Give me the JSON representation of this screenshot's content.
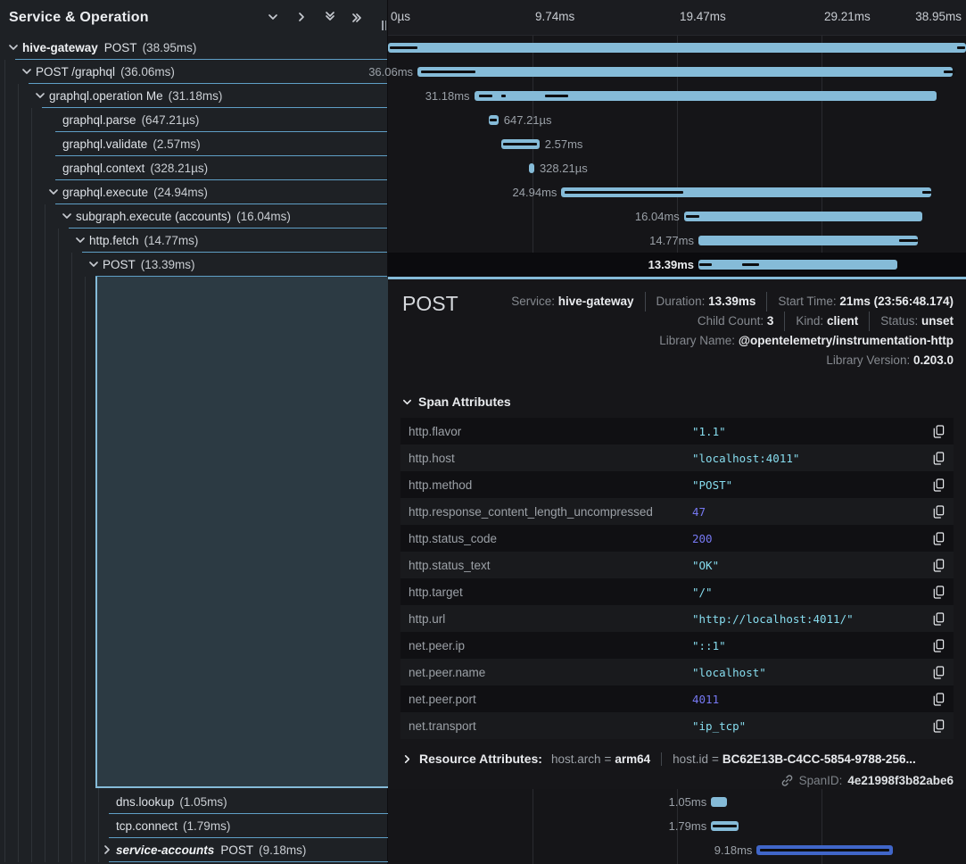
{
  "header": {
    "title": "Service & Operation",
    "icons": [
      "chevron-down-icon",
      "chevron-right-icon",
      "double-chevron-down-icon",
      "double-chevron-right-icon"
    ]
  },
  "ruler": {
    "ticks": [
      "0µs",
      "9.74ms",
      "19.47ms",
      "29.21ms",
      "38.95ms"
    ]
  },
  "colors": {
    "bar_blue": "#85bbd8",
    "bar_service2": "#4066c9",
    "row_border": "#5f9fc6",
    "selected_panel": "#2c3a43",
    "string_value": "#87ddef",
    "number_value": "#7779f3"
  },
  "spans": [
    {
      "service": "hive-gateway",
      "italic": false,
      "name": "POST",
      "duration": "(38.95ms)",
      "level": 0,
      "toggle": "expanded",
      "selected": false,
      "bar": {
        "start": 0.0,
        "width": 1.0,
        "color": "light",
        "label": "",
        "label_side": "none",
        "bold_label": false,
        "dashes": [
          [
            0.003,
            0.048
          ],
          [
            0.985,
            0.013
          ]
        ]
      }
    },
    {
      "service": "",
      "italic": false,
      "name": "POST /graphql",
      "duration": "(36.06ms)",
      "level": 1,
      "toggle": "expanded",
      "selected": false,
      "bar": {
        "start": 0.051,
        "width": 0.926,
        "color": "light",
        "label": "36.06ms",
        "label_side": "left",
        "bold_label": false,
        "dashes": [
          [
            0.057,
            0.095
          ],
          [
            0.962,
            0.019
          ]
        ]
      }
    },
    {
      "service": "",
      "italic": false,
      "name": "graphql.operation Me",
      "duration": "(31.18ms)",
      "level": 2,
      "toggle": "expanded",
      "selected": false,
      "bar": {
        "start": 0.149,
        "width": 0.8,
        "color": "light",
        "label": "31.18ms",
        "label_side": "left",
        "bold_label": false,
        "dashes": [
          [
            0.157,
            0.024
          ],
          [
            0.196,
            0.008
          ],
          [
            0.272,
            0.04
          ]
        ]
      }
    },
    {
      "service": "",
      "italic": false,
      "name": "graphql.parse",
      "duration": "(647.21µs)",
      "level": 3,
      "toggle": "none",
      "selected": false,
      "bar": {
        "start": 0.174,
        "width": 0.017,
        "color": "light",
        "label": "647.21µs",
        "label_side": "right",
        "bold_label": false,
        "dashes": [
          [
            0.176,
            0.012
          ]
        ]
      }
    },
    {
      "service": "",
      "italic": false,
      "name": "graphql.validate",
      "duration": "(2.57ms)",
      "level": 3,
      "toggle": "none",
      "selected": false,
      "bar": {
        "start": 0.196,
        "width": 0.066,
        "color": "light",
        "label": "2.57ms",
        "label_side": "right",
        "bold_label": false,
        "dashes": [
          [
            0.199,
            0.059
          ]
        ]
      }
    },
    {
      "service": "",
      "italic": false,
      "name": "graphql.context",
      "duration": "(328.21µs)",
      "level": 3,
      "toggle": "none",
      "selected": false,
      "bar": {
        "start": 0.244,
        "width": 0.009,
        "color": "light",
        "label": "328.21µs",
        "label_side": "right",
        "bold_label": false,
        "dashes": []
      }
    },
    {
      "service": "",
      "italic": false,
      "name": "graphql.execute",
      "duration": "(24.94ms)",
      "level": 3,
      "toggle": "expanded",
      "selected": false,
      "bar": {
        "start": 0.3,
        "width": 0.64,
        "color": "light",
        "label": "24.94ms",
        "label_side": "left",
        "bold_label": false,
        "dashes": [
          [
            0.306,
            0.205
          ],
          [
            0.925,
            0.015
          ]
        ]
      }
    },
    {
      "service": "",
      "italic": false,
      "name": "subgraph.execute (accounts)",
      "duration": "(16.04ms)",
      "level": 4,
      "toggle": "expanded",
      "selected": false,
      "bar": {
        "start": 0.512,
        "width": 0.412,
        "color": "light",
        "label": "16.04ms",
        "label_side": "left",
        "bold_label": false,
        "dashes": [
          [
            0.515,
            0.024
          ]
        ]
      }
    },
    {
      "service": "",
      "italic": false,
      "name": "http.fetch",
      "duration": "(14.77ms)",
      "level": 5,
      "toggle": "expanded",
      "selected": false,
      "bar": {
        "start": 0.537,
        "width": 0.379,
        "color": "light",
        "label": "14.77ms",
        "label_side": "left",
        "bold_label": false,
        "dashes": [
          [
            0.885,
            0.031
          ]
        ]
      }
    },
    {
      "service": "",
      "italic": false,
      "name": "POST",
      "duration": "(13.39ms)",
      "level": 6,
      "toggle": "expanded",
      "selected": true,
      "bar": {
        "start": 0.537,
        "width": 0.344,
        "color": "light",
        "label": "13.39ms",
        "label_side": "left",
        "bold_label": true,
        "dashes": [
          [
            0.539,
            0.021
          ],
          [
            0.612,
            0.03
          ]
        ]
      }
    }
  ],
  "bottom_spans": [
    {
      "service": "",
      "italic": false,
      "name": "dns.lookup",
      "duration": "(1.05ms)",
      "level": 7,
      "toggle": "none",
      "selected": false,
      "bar": {
        "start": 0.559,
        "width": 0.028,
        "color": "light",
        "label": "1.05ms",
        "label_side": "left",
        "bold_label": false,
        "dashes": []
      }
    },
    {
      "service": "",
      "italic": false,
      "name": "tcp.connect",
      "duration": "(1.79ms)",
      "level": 7,
      "toggle": "none",
      "selected": false,
      "bar": {
        "start": 0.559,
        "width": 0.047,
        "color": "light",
        "label": "1.79ms",
        "label_side": "left",
        "bold_label": false,
        "dashes": [
          [
            0.561,
            0.043
          ]
        ]
      }
    },
    {
      "service": "service-accounts",
      "italic": true,
      "name": "POST",
      "duration": "(9.18ms)",
      "level": 7,
      "toggle": "collapsed",
      "selected": false,
      "bar": {
        "start": 0.638,
        "width": 0.236,
        "color": "blue",
        "label": "9.18ms",
        "label_side": "left",
        "bold_label": false,
        "dashes": [
          [
            0.643,
            0.224
          ]
        ]
      }
    }
  ],
  "detail": {
    "title": "POST",
    "meta_rows": [
      [
        {
          "label": "Service:",
          "value": "hive-gateway"
        },
        {
          "label": "Duration:",
          "value": "13.39ms"
        },
        {
          "label": "Start Time:",
          "value": "21ms (23:56:48.174)"
        }
      ],
      [
        {
          "label": "Child Count:",
          "value": "3"
        },
        {
          "label": "Kind:",
          "value": "client"
        },
        {
          "label": "Status:",
          "value": "unset"
        }
      ],
      [
        {
          "label": "Library Name:",
          "value": "@opentelemetry/instrumentation-http"
        }
      ],
      [
        {
          "label": "Library Version:",
          "value": "0.203.0"
        }
      ]
    ],
    "attributes_title": "Span Attributes",
    "attributes": [
      {
        "key": "http.flavor",
        "value": "\"1.1\"",
        "type": "string"
      },
      {
        "key": "http.host",
        "value": "\"localhost:4011\"",
        "type": "string"
      },
      {
        "key": "http.method",
        "value": "\"POST\"",
        "type": "string"
      },
      {
        "key": "http.response_content_length_uncompressed",
        "value": "47",
        "type": "number"
      },
      {
        "key": "http.status_code",
        "value": "200",
        "type": "number"
      },
      {
        "key": "http.status_text",
        "value": "\"OK\"",
        "type": "string"
      },
      {
        "key": "http.target",
        "value": "\"/\"",
        "type": "string"
      },
      {
        "key": "http.url",
        "value": "\"http://localhost:4011/\"",
        "type": "string"
      },
      {
        "key": "net.peer.ip",
        "value": "\"::1\"",
        "type": "string"
      },
      {
        "key": "net.peer.name",
        "value": "\"localhost\"",
        "type": "string"
      },
      {
        "key": "net.peer.port",
        "value": "4011",
        "type": "number"
      },
      {
        "key": "net.transport",
        "value": "\"ip_tcp\"",
        "type": "string"
      }
    ],
    "resource": {
      "title": "Resource Attributes:",
      "pairs": [
        {
          "key": "host.arch",
          "value": "arm64"
        },
        {
          "key": "host.id",
          "value": "BC62E13B-C4CC-5854-9788-256..."
        }
      ]
    },
    "span_id": {
      "label": "SpanID:",
      "value": "4e21998f3b82abe6"
    }
  }
}
